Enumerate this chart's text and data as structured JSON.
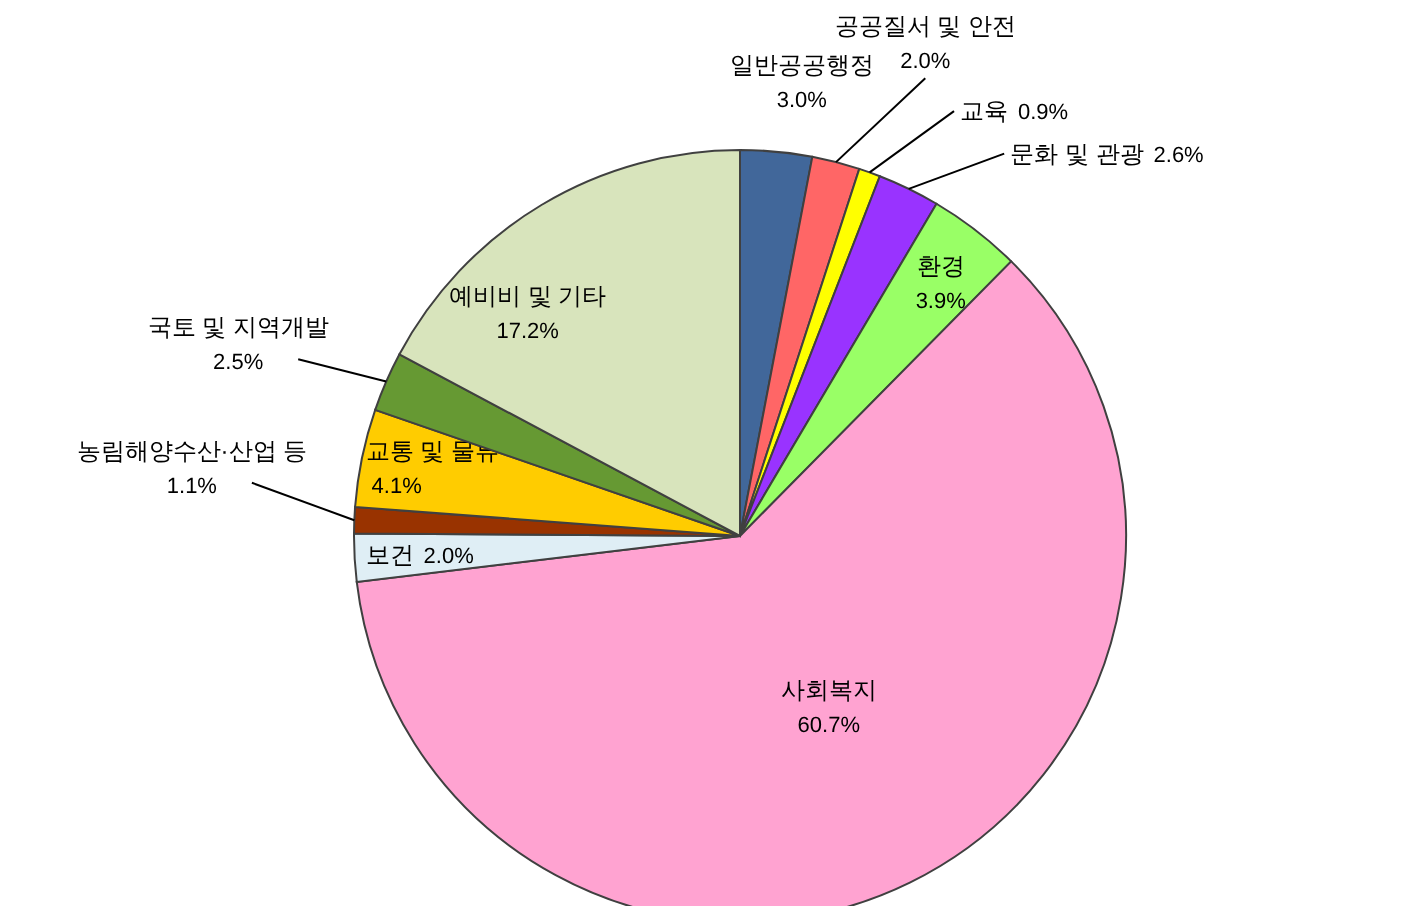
{
  "chart_data": {
    "type": "pie",
    "categories": [
      "일반공공행정",
      "공공질서 및 안전",
      "교육",
      "문화 및 관광",
      "환경",
      "사회복지",
      "보건",
      "농림해양수산·산업 등",
      "교통 및 물류",
      "국토 및 지역개발",
      "예비비 및 기타"
    ],
    "values": [
      3.0,
      2.0,
      0.9,
      2.6,
      3.9,
      60.7,
      2.0,
      1.1,
      4.1,
      2.5,
      17.2
    ],
    "colors": [
      "#41679a",
      "#ff6666",
      "#ffff00",
      "#9933ff",
      "#99ff66",
      "#ffa3d1",
      "#dfeef5",
      "#993300",
      "#ffcc00",
      "#669933",
      "#d8e4bc"
    ],
    "value_labels": [
      "3.0%",
      "2.0%",
      "0.9%",
      "2.6%",
      "3.9%",
      "60.7%",
      "2.0%",
      "1.1%",
      "4.1%",
      "2.5%",
      "17.2%"
    ],
    "legend": false
  }
}
